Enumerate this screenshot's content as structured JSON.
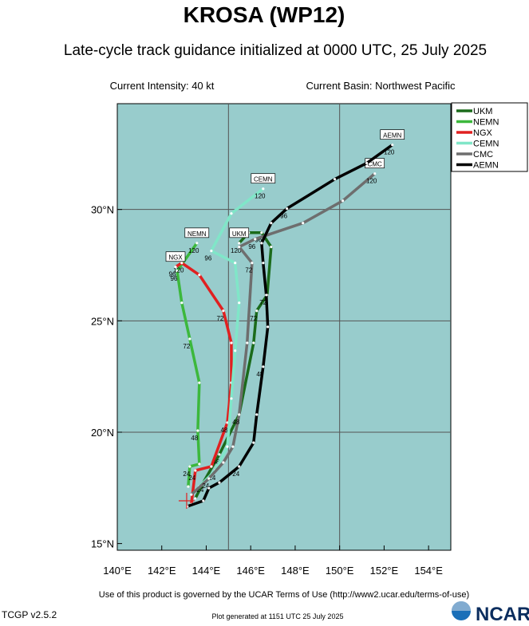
{
  "chart_data": {
    "type": "track-map",
    "title": "KROSA (WP12)",
    "subtitle": "Late-cycle track guidance initialized at 0000 UTC, 25 July 2025",
    "info_left": "Current Intensity: 40 kt",
    "info_right": "Current Basin: Northwest Pacific",
    "xlim": [
      140,
      155
    ],
    "ylim": [
      14.7,
      34.75
    ],
    "xticks": [
      {
        "value": 140,
        "label": "140°E"
      },
      {
        "value": 142,
        "label": "142°E"
      },
      {
        "value": 144,
        "label": "144°E"
      },
      {
        "value": 146,
        "label": "146°E"
      },
      {
        "value": 148,
        "label": "148°E"
      },
      {
        "value": 150,
        "label": "150°E"
      },
      {
        "value": 152,
        "label": "152°E"
      },
      {
        "value": 154,
        "label": "154°E"
      }
    ],
    "yticks": [
      {
        "value": 15,
        "label": "15°N"
      },
      {
        "value": 20,
        "label": "20°N"
      },
      {
        "value": 25,
        "label": "25°N"
      },
      {
        "value": 30,
        "label": "30°N"
      }
    ],
    "xgrid": [
      145,
      150
    ],
    "ygrid": [
      20,
      25,
      30
    ],
    "background": "#98cccc",
    "current_position": {
      "lon": 143.12,
      "lat": 16.92,
      "color": "#e02020"
    },
    "series": [
      {
        "name": "UKM",
        "color": "#1b6b1b",
        "lon": [
          143.51,
          143.87,
          144.59,
          145.48,
          146.13,
          146.27,
          146.74,
          146.92,
          146.49,
          145.91,
          145.48
        ],
        "lat": [
          17.03,
          17.74,
          19.0,
          20.79,
          24.01,
          25.45,
          26.16,
          28.32,
          28.96,
          28.96,
          28.49
        ],
        "point_labels": [
          null,
          "24",
          "48",
          null,
          null,
          "72",
          null,
          null,
          "96",
          null,
          "120"
        ]
      },
      {
        "name": "NEMN",
        "color": "#3cb83c",
        "lon": [
          143.19,
          143.26,
          143.69,
          143.62,
          143.69,
          143.26,
          142.9,
          142.69,
          143.58
        ],
        "lat": [
          17.56,
          18.46,
          18.57,
          20.07,
          22.22,
          24.19,
          25.81,
          27.24,
          28.49
        ],
        "point_labels": [
          null,
          "24",
          null,
          "48",
          null,
          "72",
          null,
          "96",
          "120"
        ]
      },
      {
        "name": "NGX",
        "color": "#e02020",
        "lon": [
          143.33,
          143.51,
          144.23,
          144.95,
          145.13,
          145.13,
          144.77,
          143.69,
          142.9,
          142.62
        ],
        "lat": [
          16.77,
          18.28,
          18.46,
          20.43,
          22.22,
          24.01,
          25.45,
          27.06,
          27.6,
          27.42
        ],
        "point_labels": [
          null,
          "24",
          null,
          "48",
          null,
          null,
          "72",
          null,
          "120",
          "96"
        ]
      },
      {
        "name": "CEMN",
        "color": "#80e6c8",
        "lon": [
          143.69,
          144.41,
          144.95,
          145.13,
          145.3,
          145.48,
          145.3,
          144.23,
          145.13,
          146.56
        ],
        "lat": [
          17.56,
          18.28,
          19.35,
          21.51,
          23.66,
          25.81,
          27.6,
          28.14,
          29.82,
          30.93
        ],
        "point_labels": [
          null,
          "24",
          null,
          null,
          null,
          null,
          null,
          "96",
          null,
          "120"
        ]
      },
      {
        "name": "CMC",
        "color": "#6e6e6e",
        "lon": [
          143.33,
          144.12,
          144.77,
          145.2,
          145.48,
          145.84,
          146.06,
          145.48,
          146.2,
          148.35,
          150.14,
          151.58
        ],
        "lat": [
          17.2,
          17.92,
          18.64,
          19.35,
          20.79,
          24.01,
          27.6,
          28.32,
          28.67,
          29.39,
          30.39,
          31.61
        ],
        "point_labels": [
          null,
          "24",
          null,
          null,
          "48",
          null,
          "72",
          null,
          "96",
          null,
          null,
          "120"
        ]
      },
      {
        "name": "AEMN",
        "color": "#000000",
        "lon": [
          143.15,
          143.87,
          144.12,
          144.59,
          145.48,
          146.13,
          146.27,
          146.56,
          146.77,
          146.7,
          146.56,
          146.49,
          146.92,
          147.63,
          149.78,
          151.22,
          152.37
        ],
        "lat": [
          16.67,
          16.92,
          17.49,
          17.74,
          18.46,
          19.53,
          20.79,
          22.94,
          24.73,
          26.16,
          27.6,
          28.49,
          29.39,
          30.04,
          31.36,
          32.08,
          32.9
        ],
        "point_labels": [
          null,
          null,
          null,
          null,
          "24",
          null,
          null,
          "48",
          null,
          "72",
          null,
          null,
          null,
          "96",
          null,
          null,
          "120"
        ]
      }
    ],
    "footer_terms": "Use of this product is governed by the UCAR Terms of Use (http://www2.ucar.edu/terms-of-use)",
    "version": "TCGP v2.5.2",
    "generated": "Plot generated at 1151 UTC   25 July 2025",
    "logo": "NCAR"
  }
}
